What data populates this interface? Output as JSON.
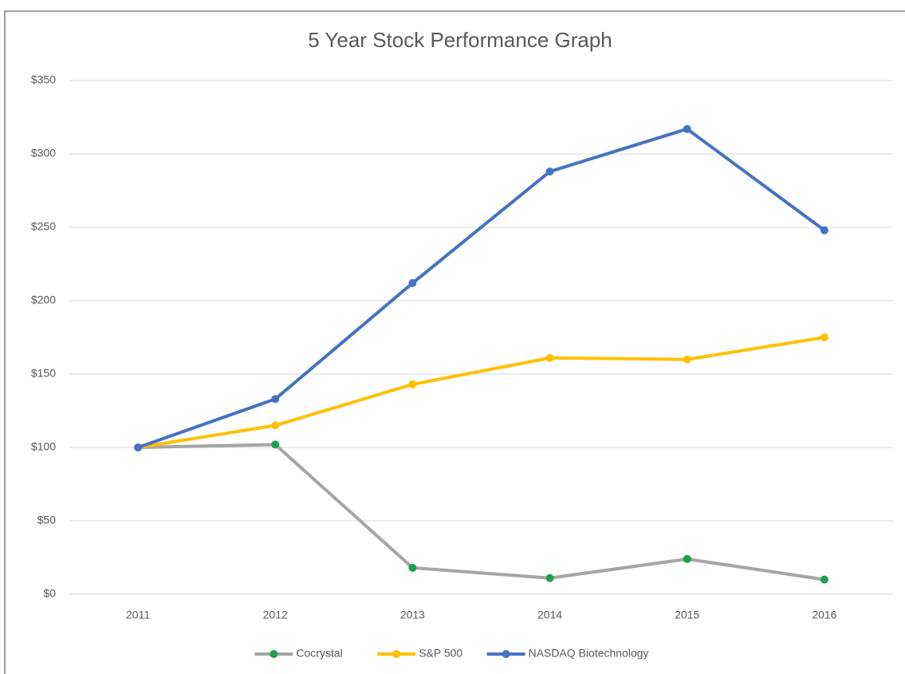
{
  "chart_data": {
    "type": "line",
    "title": "5 Year Stock Performance  Graph",
    "categories": [
      "2011",
      "2012",
      "2013",
      "2014",
      "2015",
      "2016"
    ],
    "series": [
      {
        "name": "Cocrystal",
        "color": "#a5a5a5",
        "marker_color": "#1aa24a",
        "values": [
          100,
          102,
          18,
          11,
          24,
          10
        ]
      },
      {
        "name": "S&P 500",
        "color": "#ffc000",
        "marker_color": "#ffc000",
        "values": [
          100,
          115,
          143,
          161,
          160,
          175
        ]
      },
      {
        "name": "NASDAQ Biotechnology",
        "color": "#4472c4",
        "marker_color": "#4472c4",
        "values": [
          100,
          133,
          212,
          288,
          317,
          248
        ]
      }
    ],
    "ylim": [
      0,
      350
    ],
    "yticks": [
      {
        "value": 0,
        "label": "$0"
      },
      {
        "value": 50,
        "label": "$50"
      },
      {
        "value": 100,
        "label": "$100"
      },
      {
        "value": 150,
        "label": "$150"
      },
      {
        "value": 200,
        "label": "$200"
      },
      {
        "value": 250,
        "label": "$250"
      },
      {
        "value": 300,
        "label": "$300"
      },
      {
        "value": 350,
        "label": "$350"
      }
    ],
    "grid": true,
    "legend": "bottom"
  }
}
